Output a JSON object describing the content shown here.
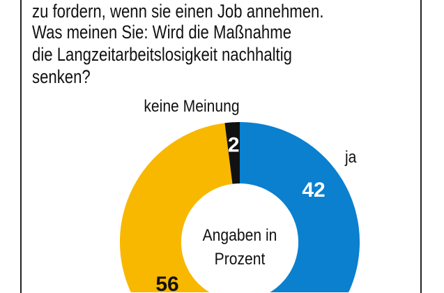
{
  "question": {
    "lines": [
      "zu fordern, wenn sie einen Job annehmen.",
      "Was meinen Sie: Wird die Maßnahme",
      "die Langzeitarbeitslosigkeit nachhaltig",
      "senken?"
    ]
  },
  "chart_data": {
    "type": "pie",
    "donut": true,
    "center_label": [
      "Angaben in",
      "Prozent"
    ],
    "unit": "Prozent",
    "slices": [
      {
        "name": "ja",
        "value": 42,
        "color": "#0a80cf",
        "label_color": "#ffffff"
      },
      {
        "name": "",
        "value": 56,
        "color": "#f8b800",
        "label_color": "#111111"
      },
      {
        "name": "keine Meinung",
        "value": 2,
        "color": "#111111",
        "label_color": "#ffffff"
      }
    ]
  }
}
